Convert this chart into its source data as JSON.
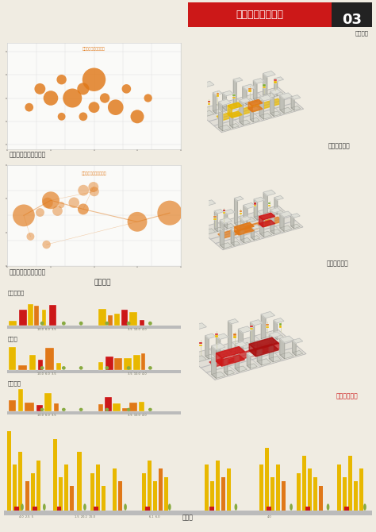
{
  "bg_color": "#f0ece2",
  "title_text": "酒仙桥居住区规划",
  "subtitle_num": "03",
  "subtitle_text": "系统分析",
  "label1": "人群配套公共设施服务",
  "label2": "人群居住面积构成分布",
  "label3": "道路剖面",
  "label4": "酒仙桥东路",
  "label5": "红霞路",
  "label6": "红霞中路",
  "label7": "红霞路",
  "right_label1": "居住生活系统",
  "right_label2": "社区服务系统",
  "right_label3": "城市活动系统",
  "orange": "#E07818",
  "red": "#CC1818",
  "yellow": "#E8B800",
  "green": "#7AAA30",
  "white": "#FFFFFF",
  "dark": "#333333",
  "grey_light": "#CCCCBB",
  "grey_mid": "#AAAAAA",
  "grey_dark": "#888880"
}
